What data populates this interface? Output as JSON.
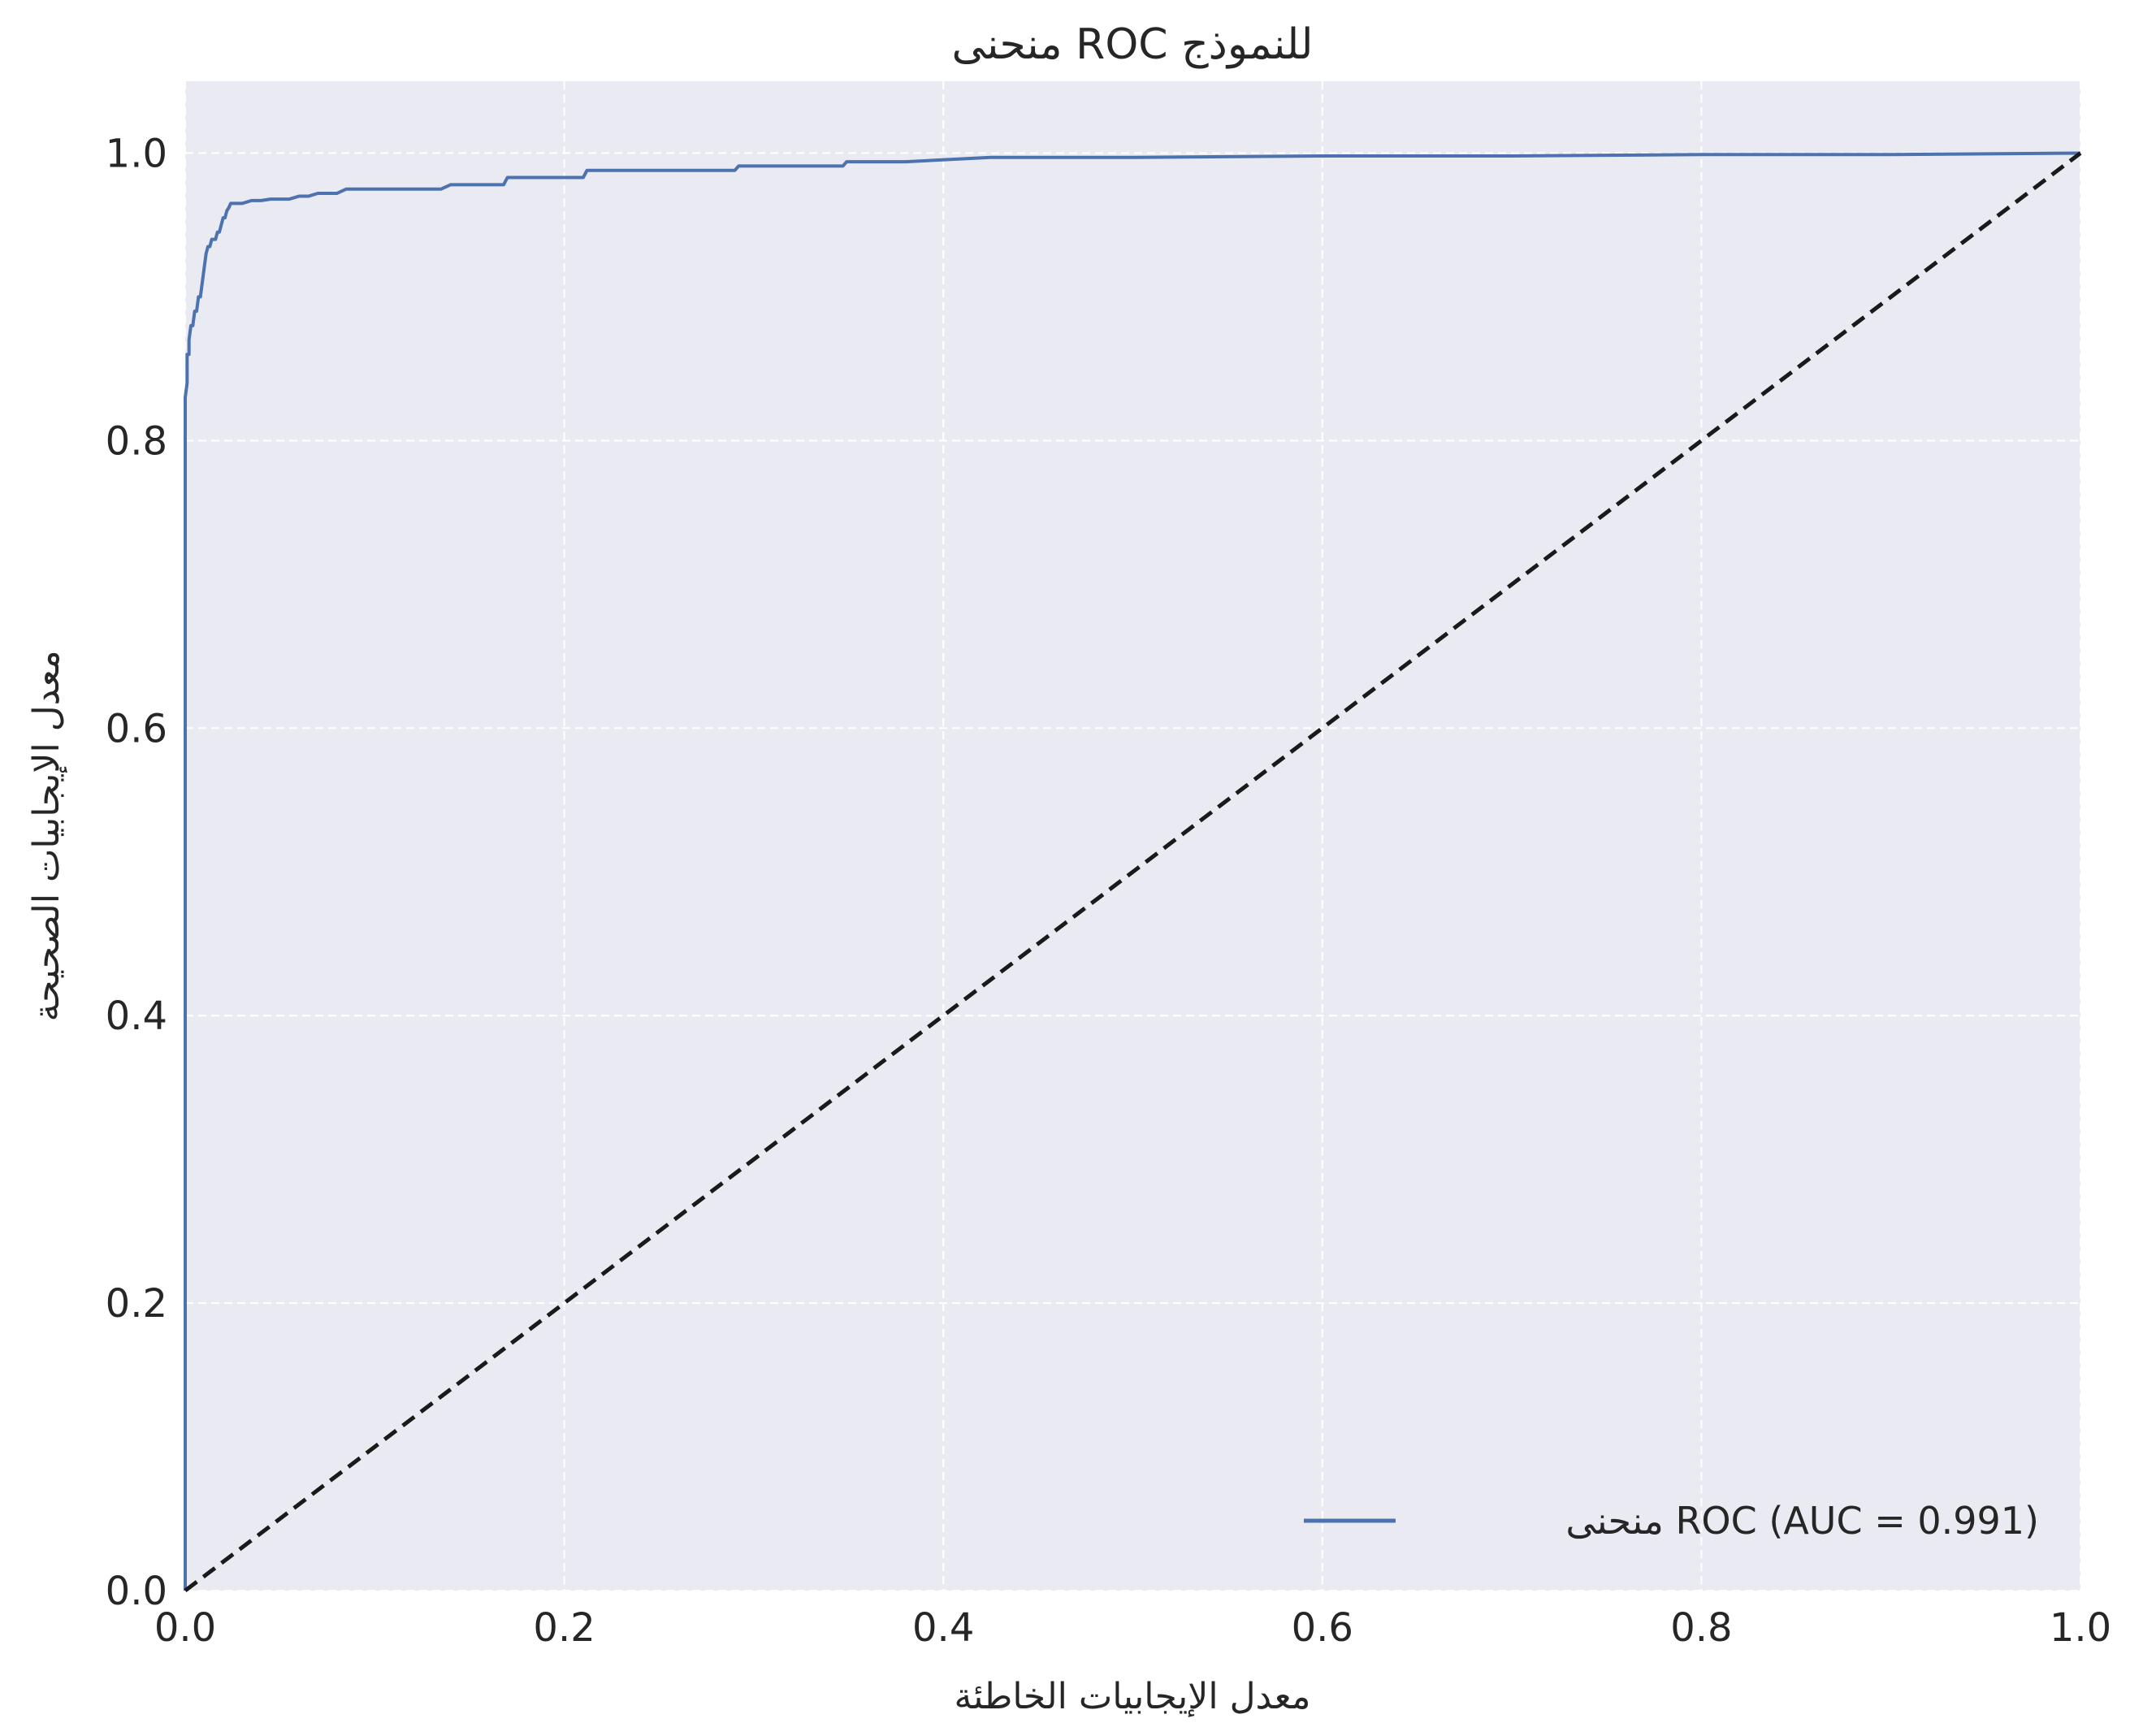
{
  "chart_data": {
    "type": "line",
    "title": "منحنى ROC للنموذج",
    "xlabel": "معدل الإيجابيات الخاطئة",
    "ylabel": "معدل الإيجابيات الصحيحة",
    "xlim": [
      0.0,
      1.0
    ],
    "ylim": [
      0.0,
      1.05
    ],
    "xticks": [
      0.0,
      0.2,
      0.4,
      0.6,
      0.8,
      1.0
    ],
    "yticks": [
      0.0,
      0.2,
      0.4,
      0.6,
      0.8,
      1.0
    ],
    "xtick_labels": [
      "0.0",
      "0.2",
      "0.4",
      "0.6",
      "0.8",
      "1.0"
    ],
    "ytick_labels": [
      "0.0",
      "0.2",
      "0.4",
      "0.6",
      "0.8",
      "1.0"
    ],
    "grid": true,
    "grid_style": "dashed",
    "legend_position": "lower-right",
    "series": [
      {
        "name": "منحنى ROC (AUC = 0.991)",
        "color": "#4c72b0",
        "style": "solid",
        "x": [
          0.0,
          0.0,
          0.001,
          0.001,
          0.002,
          0.002,
          0.003,
          0.004,
          0.005,
          0.006,
          0.007,
          0.008,
          0.009,
          0.01,
          0.011,
          0.012,
          0.013,
          0.014,
          0.015,
          0.016,
          0.017,
          0.018,
          0.019,
          0.02,
          0.021,
          0.022,
          0.023,
          0.024,
          0.025,
          0.026,
          0.03,
          0.035,
          0.04,
          0.045,
          0.05,
          0.055,
          0.06,
          0.065,
          0.07,
          0.075,
          0.08,
          0.085,
          0.09,
          0.1,
          0.12,
          0.135,
          0.14,
          0.16,
          0.168,
          0.17,
          0.2,
          0.21,
          0.212,
          0.25,
          0.29,
          0.292,
          0.33,
          0.347,
          0.349,
          0.38,
          0.425,
          0.5,
          0.6,
          0.7,
          0.8,
          0.9,
          1.0
        ],
        "y": [
          0.0,
          0.83,
          0.84,
          0.86,
          0.86,
          0.87,
          0.88,
          0.88,
          0.89,
          0.89,
          0.9,
          0.9,
          0.91,
          0.92,
          0.93,
          0.935,
          0.935,
          0.94,
          0.94,
          0.94,
          0.945,
          0.945,
          0.95,
          0.955,
          0.955,
          0.96,
          0.962,
          0.965,
          0.965,
          0.965,
          0.965,
          0.967,
          0.967,
          0.968,
          0.968,
          0.968,
          0.97,
          0.97,
          0.972,
          0.972,
          0.972,
          0.975,
          0.975,
          0.975,
          0.975,
          0.975,
          0.978,
          0.978,
          0.978,
          0.983,
          0.983,
          0.983,
          0.988,
          0.988,
          0.988,
          0.991,
          0.991,
          0.991,
          0.994,
          0.994,
          0.997,
          0.997,
          0.998,
          0.998,
          0.999,
          0.999,
          1.0
        ]
      },
      {
        "name": "",
        "color": "#1a1a1a",
        "style": "dashed",
        "x": [
          0.0,
          1.0
        ],
        "y": [
          0.0,
          1.0
        ]
      }
    ]
  },
  "colors": {
    "plot_background": "#eaeaf2",
    "grid": "#ffffff",
    "roc_line": "#4c72b0",
    "diagonal": "#1a1a1a"
  }
}
